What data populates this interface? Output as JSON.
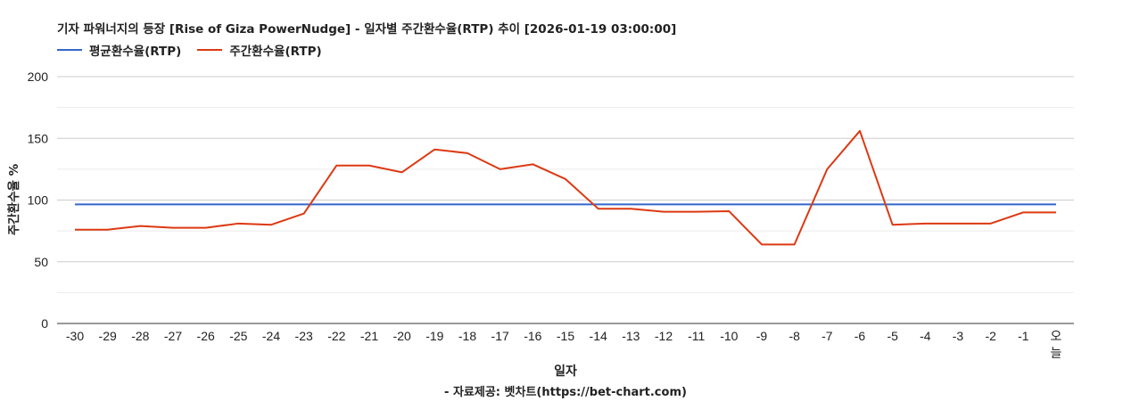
{
  "chart": {
    "title": "기자 파워너지의 등장 [Rise of Giza PowerNudge] - 일자별 주간환수율(RTP) 추이 [2026-01-19 03:00:00]",
    "legend": [
      {
        "label": "평균환수율(RTP)",
        "color": "#3366cc"
      },
      {
        "label": "주간환수율(RTP)",
        "color": "#dc3912"
      }
    ],
    "xlabel": "일자",
    "ylabel": "주간환수율 %",
    "credit": "- 자료제공: 벳차트(https://bet-chart.com)"
  },
  "chart_data": {
    "type": "line",
    "title": "기자 파워너지의 등장 [Rise of Giza PowerNudge] - 일자별 주간환수율(RTP) 추이 [2026-01-19 03:00:00]",
    "xlabel": "일자",
    "ylabel": "주간환수율 %",
    "ylim": [
      0,
      200
    ],
    "yticks": [
      0,
      50,
      100,
      150,
      200
    ],
    "grid": true,
    "legend_position": "top-left",
    "categories": [
      "-30",
      "-29",
      "-28",
      "-27",
      "-26",
      "-25",
      "-24",
      "-23",
      "-22",
      "-21",
      "-20",
      "-19",
      "-18",
      "-17",
      "-16",
      "-15",
      "-14",
      "-13",
      "-12",
      "-11",
      "-10",
      "-9",
      "-8",
      "-7",
      "-6",
      "-5",
      "-4",
      "-3",
      "-2",
      "-1",
      "오늘"
    ],
    "series": [
      {
        "name": "평균환수율(RTP)",
        "color": "#3366cc",
        "values": [
          96.5,
          96.5,
          96.5,
          96.5,
          96.5,
          96.5,
          96.5,
          96.5,
          96.5,
          96.5,
          96.5,
          96.5,
          96.5,
          96.5,
          96.5,
          96.5,
          96.5,
          96.5,
          96.5,
          96.5,
          96.5,
          96.5,
          96.5,
          96.5,
          96.5,
          96.5,
          96.5,
          96.5,
          96.5,
          96.5,
          96.5
        ]
      },
      {
        "name": "주간환수율(RTP)",
        "color": "#dc3912",
        "values": [
          76,
          76,
          79,
          77.5,
          77.5,
          81,
          80,
          89,
          128,
          128,
          122.5,
          141,
          138,
          125,
          129,
          117,
          93,
          93,
          90.5,
          90.5,
          91,
          64,
          64,
          125,
          156,
          80,
          81,
          81,
          81,
          90,
          90
        ]
      }
    ]
  }
}
